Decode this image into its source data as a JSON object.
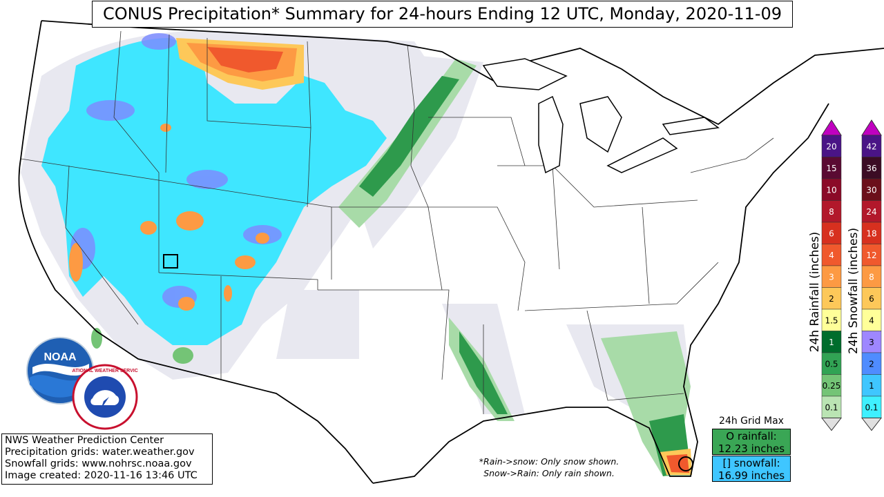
{
  "title": "CONUS Precipitation* Summary for 24-hours Ending 12 UTC, Monday, 2020-11-09",
  "credits": [
    "NWS Weather Prediction Center",
    "Precipitation grids: water.weather.gov",
    "Snowfall grids: www.nohrsc.noaa.gov",
    "Image created: 2020-11-16 13:46 UTC"
  ],
  "note": {
    "line1": "*Rain->snow: Only snow shown.",
    "line2": "Snow->Rain: Only rain shown."
  },
  "grid_max": {
    "title": "24h Grid Max",
    "rain_line1": "O rainfall:",
    "rain_line2": "12.23 inches",
    "snow_line1": "[] snowfall:",
    "snow_line2": "16.99 inches"
  },
  "rain_bar": {
    "label": "24h Rainfall (inches)",
    "ticks": [
      "20",
      "15",
      "10",
      "8",
      "6",
      "4",
      "3",
      "2",
      "1.5",
      "1",
      "0.5",
      "0.25",
      "0.1"
    ],
    "colors": [
      "#4a1486",
      "#5a0a32",
      "#8b0a28",
      "#b2182b",
      "#d7301f",
      "#f0592d",
      "#fd9a43",
      "#fdc859",
      "#ffff99",
      "#006d2c",
      "#31a354",
      "#74c476",
      "#bae4b3"
    ]
  },
  "snow_bar": {
    "label": "24h Snowfall (inches)",
    "ticks": [
      "42",
      "36",
      "30",
      "24",
      "18",
      "12",
      "8",
      "6",
      "4",
      "3",
      "2",
      "1",
      "0.1"
    ],
    "colors": [
      "#4a1486",
      "#3b0c24",
      "#6b0f1a",
      "#b2182b",
      "#d7301f",
      "#f0592d",
      "#fd9a43",
      "#fdc859",
      "#ffff99",
      "#9e87ff",
      "#4f8cff",
      "#3fc6ff",
      "#3ff0ff"
    ]
  },
  "logos": {
    "noaa_text": "NOAA",
    "nws_text": "NATIONAL WEATHER SERVICE"
  },
  "colors": {
    "snow_cyan": "#3fe6ff",
    "snow_light": "#8fb4ff",
    "rain_green": "#2e9a4c",
    "rain_light": "#a8dba8",
    "trace": "#e6e6ee",
    "hot": "#f0592d",
    "warm": "#fdc859"
  }
}
